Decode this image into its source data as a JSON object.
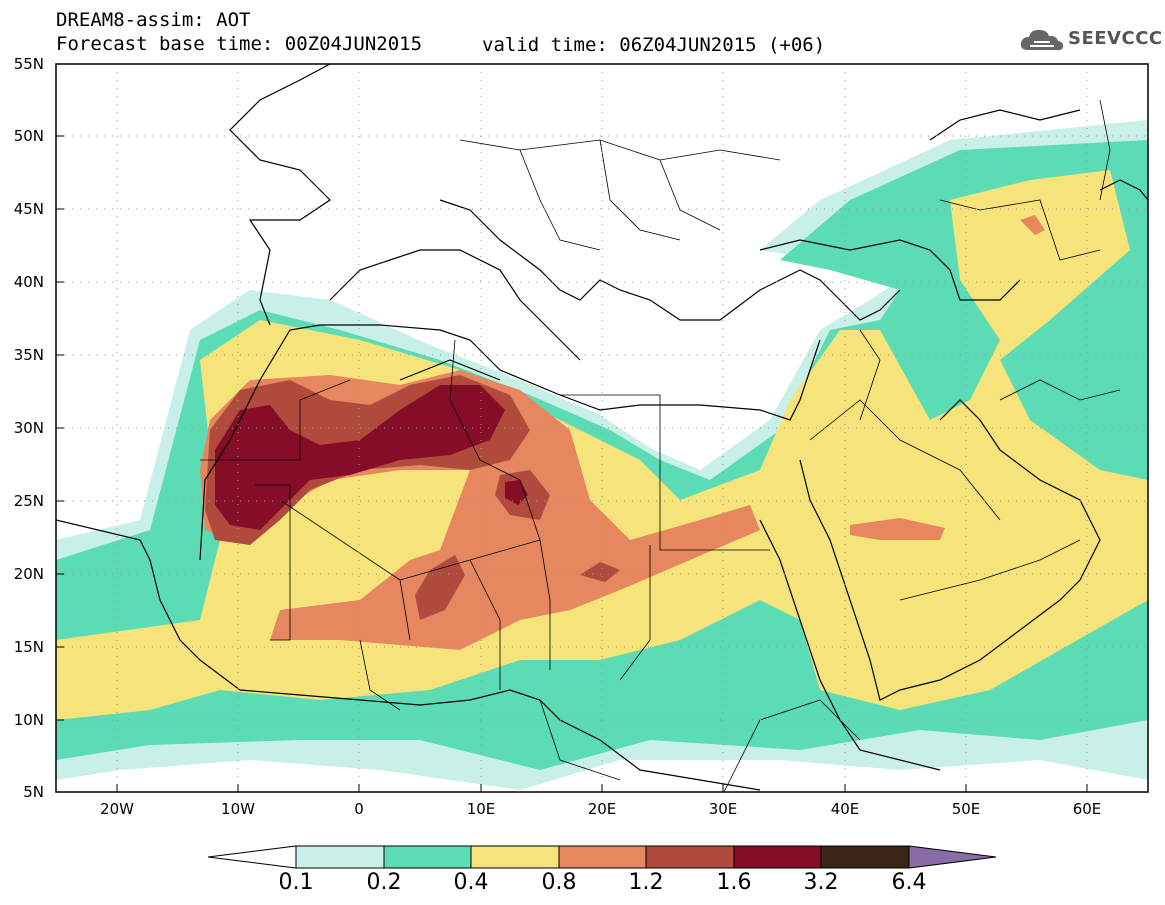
{
  "header": {
    "line1": "DREAM8-assim: AOT",
    "line2": "Forecast base time: 00Z04JUN2015",
    "valid": "valid time: 06Z04JUN2015 (+06)"
  },
  "logo": {
    "text": "SEEVCCC",
    "icon": "cloud-icon"
  },
  "axes": {
    "lat_labels": [
      "55N",
      "50N",
      "45N",
      "40N",
      "35N",
      "30N",
      "25N",
      "20N",
      "15N",
      "10N",
      "5N"
    ],
    "lon_labels": [
      "20W",
      "10W",
      "0",
      "10E",
      "20E",
      "30E",
      "40E",
      "50E",
      "60E"
    ],
    "lat_range": [
      5,
      55
    ],
    "lon_range": [
      -25,
      65
    ]
  },
  "colorbar": {
    "labels": [
      "0.1",
      "0.2",
      "0.4",
      "0.8",
      "1.2",
      "1.6",
      "3.2",
      "6.4"
    ],
    "colors": [
      "#ffffff",
      "#c8f0e8",
      "#5cdcb4",
      "#f6e37a",
      "#e6875f",
      "#b04a3c",
      "#860d27",
      "#3a2516",
      "#8a6ca6"
    ]
  },
  "colors": {
    "coast": "#000000",
    "grid": "#888888"
  }
}
